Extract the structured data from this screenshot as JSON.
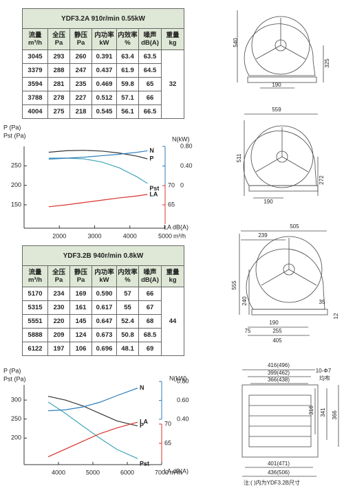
{
  "tables": [
    {
      "title": "YDF3.2A   910r/min   0.55kW",
      "headers": [
        [
          "流量",
          "m³/h"
        ],
        [
          "全压",
          "Pa"
        ],
        [
          "静压",
          "Pa"
        ],
        [
          "内功率",
          "kW"
        ],
        [
          "内效率",
          "%"
        ],
        [
          "噪声",
          "dB(A)"
        ],
        [
          "重量",
          "kg"
        ]
      ],
      "rows": [
        [
          "3045",
          "293",
          "260",
          "0.391",
          "63.4",
          "63.5"
        ],
        [
          "3379",
          "288",
          "247",
          "0.437",
          "61.9",
          "64.5"
        ],
        [
          "3594",
          "281",
          "235",
          "0.469",
          "59.8",
          "65"
        ],
        [
          "3788",
          "278",
          "227",
          "0.512",
          "57.1",
          "66"
        ],
        [
          "4004",
          "275",
          "218",
          "0.545",
          "56.1",
          "66.5"
        ]
      ],
      "weight": "32"
    },
    {
      "title": "YDF3.2B   940r/min   0.8kW",
      "headers": [
        [
          "流量",
          "m³/h"
        ],
        [
          "全压",
          "Pa"
        ],
        [
          "静压",
          "Pa"
        ],
        [
          "内功率",
          "kW"
        ],
        [
          "内效率",
          "%"
        ],
        [
          "噪声",
          "dB(A)"
        ],
        [
          "重量",
          "kg"
        ]
      ],
      "rows": [
        [
          "5170",
          "234",
          "169",
          "0.590",
          "57",
          "66"
        ],
        [
          "5315",
          "230",
          "161",
          "0.617",
          "55",
          "67"
        ],
        [
          "5551",
          "220",
          "145",
          "0.647",
          "52.4",
          "68"
        ],
        [
          "5888",
          "209",
          "124",
          "0.673",
          "50.8",
          "68.5"
        ],
        [
          "6122",
          "197",
          "106",
          "0.696",
          "48.1",
          "69"
        ]
      ],
      "weight": "44"
    }
  ],
  "chart_data": [
    {
      "type": "line",
      "ylabels": [
        "P  (Pa)",
        "Pst (Pa)"
      ],
      "y2label": "N(kW)",
      "y3label": "LA dB(A)",
      "xlabel": "m³/h",
      "x": [
        1700,
        2200,
        2700,
        3200,
        3700,
        4200,
        4500
      ],
      "xlim": [
        1000,
        5000
      ],
      "xticks": [
        2000,
        3000,
        4000,
        5000
      ],
      "ylim": [
        90,
        300
      ],
      "yticks": [
        150,
        200,
        250
      ],
      "y2lim": [
        0,
        0.8
      ],
      "y2ticks": [
        0,
        {
          "value": 0.4,
          "label": "0.40"
        },
        {
          "value": 0.8,
          "label": "0.80"
        }
      ],
      "y3lim": [
        60,
        70
      ],
      "y3ticks": [
        65,
        70
      ],
      "series": [
        {
          "name": "P",
          "color": "#333333",
          "axis": "y",
          "values": [
            285,
            289,
            290,
            288,
            283,
            275,
            268
          ]
        },
        {
          "name": "Pst",
          "color": "#3fa5b5",
          "axis": "y",
          "values": [
            270,
            270,
            268,
            260,
            245,
            222,
            205
          ]
        },
        {
          "name": "N",
          "color": "#2b7bb9",
          "axis": "y2",
          "values": [
            0.54,
            0.56,
            0.58,
            0.61,
            0.64,
            0.68,
            0.71
          ]
        },
        {
          "name": "LA",
          "color": "#d9312b",
          "axis": "y3",
          "values": [
            64.5,
            65.0,
            65.6,
            66.2,
            66.8,
            67.3,
            67.7
          ]
        }
      ]
    },
    {
      "type": "line",
      "ylabels": [
        "P  (Pa)",
        "Pst (Pa)"
      ],
      "y2label": "N(kW)",
      "y3label": "LA dB(A)",
      "xlabel": "m³/h",
      "x": [
        3700,
        4200,
        4700,
        5200,
        5700,
        6300
      ],
      "xlim": [
        3000,
        7000
      ],
      "xticks": [
        4000,
        5000,
        6000,
        7000
      ],
      "ylim": [
        130,
        340
      ],
      "yticks": [
        200,
        250,
        300
      ],
      "y2lim": [
        0.4,
        0.8
      ],
      "y2ticks": [
        {
          "value": 0.4,
          "label": "0.40"
        },
        {
          "value": 0.6,
          "label": "0.60"
        },
        {
          "value": 0.8,
          "label": "0.80"
        }
      ],
      "y3lim": [
        60,
        70
      ],
      "y3ticks": [
        65,
        70
      ],
      "series": [
        {
          "name": "P",
          "color": "#333333",
          "axis": "y",
          "values": [
            310,
            300,
            285,
            265,
            245,
            232
          ]
        },
        {
          "name": "Pst",
          "color": "#3fa5b5",
          "axis": "y",
          "values": [
            295,
            265,
            232,
            200,
            170,
            146
          ]
        },
        {
          "name": "N",
          "color": "#2b7bb9",
          "axis": "y2",
          "values": [
            0.49,
            0.5,
            0.53,
            0.58,
            0.65,
            0.73
          ]
        },
        {
          "name": "LA",
          "color": "#d9312b",
          "axis": "y3",
          "values": [
            61.5,
            63.5,
            65.5,
            67.5,
            69,
            70.5
          ]
        }
      ]
    }
  ],
  "drawings": [
    {
      "labels": [
        "540",
        "325",
        "190"
      ]
    },
    {
      "labels": [
        "559",
        "511",
        "272",
        "190"
      ]
    },
    {
      "labels": [
        "505",
        "239",
        "555",
        "240",
        "35",
        "12",
        "190",
        "75",
        "255",
        "405"
      ]
    },
    {
      "labels": [
        "416(496)",
        "399(462)",
        "366(438)",
        "10-Φ7",
        "均布",
        "316",
        "341",
        "366",
        "401(471)",
        "436(506)"
      ]
    }
  ],
  "note": "注:( )内为YDF3.2B尺寸"
}
